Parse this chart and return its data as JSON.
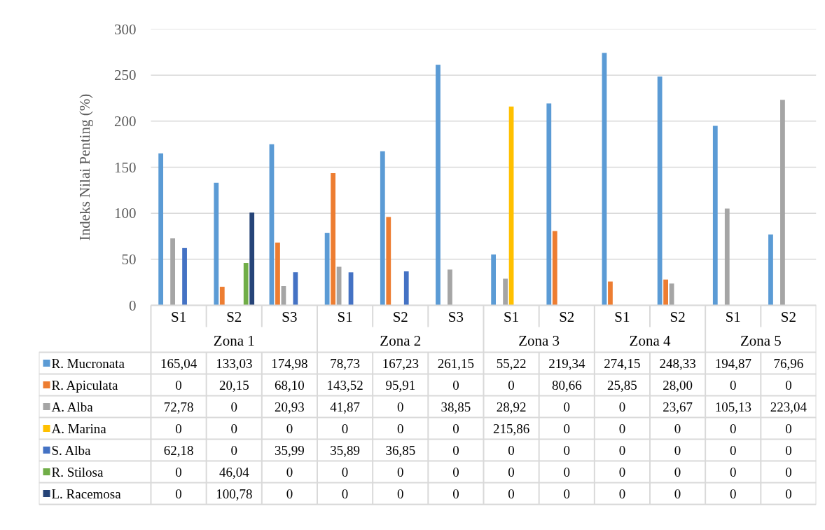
{
  "chart_data": {
    "type": "bar",
    "ylabel": "Indeks Nilai Penting (%)",
    "categories": [
      "S1",
      "S2",
      "S3",
      "S1",
      "S2",
      "S3",
      "S1",
      "S2",
      "S1",
      "S2",
      "S1",
      "S2"
    ],
    "annotations": [
      "Zona 1",
      "Zona 2",
      "Zona 3",
      "Zona 4",
      "Zona 5"
    ],
    "legend": "bottom left",
    "ylim": [
      0,
      300
    ],
    "yticks": [
      0,
      50,
      100,
      150,
      200,
      250,
      300
    ],
    "grid": "y",
    "series": [
      {
        "name": "R. Mucronata",
        "color": "#5b9bd5",
        "values": [
          165.04,
          133.03,
          174.98,
          78.73,
          167.23,
          261.15,
          55.22,
          219.34,
          274.15,
          248.33,
          194.87,
          76.96
        ],
        "value_labels": [
          "165,04",
          "133,03",
          "174,98",
          "78,73",
          "167,23",
          "261,15",
          "55,22",
          "219,34",
          "274,15",
          "248,33",
          "194,87",
          "76,96"
        ]
      },
      {
        "name": "R. Apiculata",
        "color": "#ed7d31",
        "values": [
          0,
          20.15,
          68.1,
          143.52,
          95.91,
          0,
          0,
          80.66,
          25.85,
          28.0,
          0,
          0
        ],
        "value_labels": [
          "0",
          "20,15",
          "68,10",
          "143,52",
          "95,91",
          "0",
          "0",
          "80,66",
          "25,85",
          "28,00",
          "0",
          "0"
        ]
      },
      {
        "name": "A. Alba",
        "color": "#a5a5a5",
        "values": [
          72.78,
          0,
          20.93,
          41.87,
          0,
          38.85,
          28.92,
          0,
          0,
          23.67,
          105.13,
          223.04
        ],
        "value_labels": [
          "72,78",
          "0",
          "20,93",
          "41,87",
          "0",
          "38,85",
          "28,92",
          "0",
          "0",
          "23,67",
          "105,13",
          "223,04"
        ]
      },
      {
        "name": "A. Marina",
        "color": "#ffc000",
        "values": [
          0,
          0,
          0,
          0,
          0,
          0,
          215.86,
          0,
          0,
          0,
          0,
          0
        ],
        "value_labels": [
          "0",
          "0",
          "0",
          "0",
          "0",
          "0",
          "215,86",
          "0",
          "0",
          "0",
          "0",
          "0"
        ]
      },
      {
        "name": "S. Alba",
        "color": "#4472c4",
        "values": [
          62.18,
          0,
          35.99,
          35.89,
          36.85,
          0,
          0,
          0,
          0,
          0,
          0,
          0
        ],
        "value_labels": [
          "62,18",
          "0",
          "35,99",
          "35,89",
          "36,85",
          "0",
          "0",
          "0",
          "0",
          "0",
          "0",
          "0"
        ]
      },
      {
        "name": "R. Stilosa",
        "color": "#70ad47",
        "values": [
          0,
          46.04,
          0,
          0,
          0,
          0,
          0,
          0,
          0,
          0,
          0,
          0
        ],
        "value_labels": [
          "0",
          "46,04",
          "0",
          "0",
          "0",
          "0",
          "0",
          "0",
          "0",
          "0",
          "0",
          "0"
        ]
      },
      {
        "name": "L. Racemosa",
        "color": "#264478",
        "values": [
          0,
          100.78,
          0,
          0,
          0,
          0,
          0,
          0,
          0,
          0,
          0,
          0
        ],
        "value_labels": [
          "0",
          "100,78",
          "0",
          "0",
          "0",
          "0",
          "0",
          "0",
          "0",
          "0",
          "0",
          "0"
        ]
      }
    ]
  }
}
